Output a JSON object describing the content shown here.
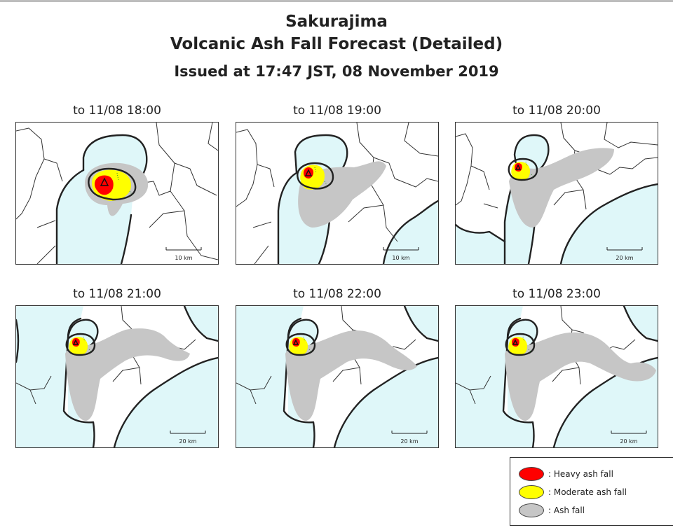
{
  "header": {
    "line1": "Sakurajima",
    "line2": "Volcanic Ash Fall Forecast (Detailed)",
    "line3": "Issued at 17:47 JST, 08 November 2019"
  },
  "colors": {
    "sea": "#dff7f9",
    "land": "#ffffff",
    "ash": "#c6c6c6",
    "moderate": "#ffff00",
    "heavy": "#ff0000",
    "coast": "#222222"
  },
  "panels": [
    {
      "caption": "to 11/08 18:00",
      "scale": "10 km"
    },
    {
      "caption": "to 11/08 19:00",
      "scale": "10 km"
    },
    {
      "caption": "to 11/08 20:00",
      "scale": "20 km"
    },
    {
      "caption": "to 11/08 21:00",
      "scale": "20 km"
    },
    {
      "caption": "to 11/08 22:00",
      "scale": "20 km"
    },
    {
      "caption": "to 11/08 23:00",
      "scale": "20 km"
    }
  ],
  "legend": {
    "items": [
      {
        "label": ": Heavy ash fall",
        "color": "#ff0000"
      },
      {
        "label": ": Moderate ash fall",
        "color": "#ffff00"
      },
      {
        "label": ": Ash fall",
        "color": "#c6c6c6"
      }
    ]
  }
}
